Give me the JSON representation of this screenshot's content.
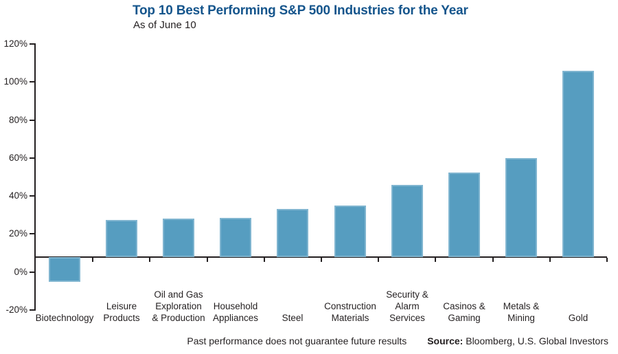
{
  "chart_data": {
    "type": "bar",
    "title": "Top 10 Best Performing S&P 500 Industries for the Year",
    "subtitle": "As of June 10",
    "unit": "percent",
    "categories": [
      "Biotechnology",
      "Leisure Products",
      "Oil and Gas Exploration & Production",
      "Household Appliances",
      "Steel",
      "Construction Materials",
      "Security & Alarm Services",
      "Casinos & Gaming",
      "Metals & Mining",
      "Gold"
    ],
    "category_label_lines": [
      [
        "Biotechnology"
      ],
      [
        "Leisure",
        "Products"
      ],
      [
        "Oil and Gas",
        "Exploration",
        "& Production"
      ],
      [
        "Household",
        "Appliances"
      ],
      [
        "Steel"
      ],
      [
        "Construction",
        "Materials"
      ],
      [
        "Security &",
        "Alarm",
        "Services"
      ],
      [
        "Casinos &",
        "Gaming"
      ],
      [
        "Metals &",
        "Mining"
      ],
      [
        "Gold"
      ]
    ],
    "values": [
      -5,
      27.5,
      28,
      28.5,
      33,
      35,
      46,
      52.5,
      60,
      106
    ],
    "ylim": [
      -20,
      120
    ],
    "y_ticks": [
      {
        "value": 120,
        "label": "120%"
      },
      {
        "value": 100,
        "label": "100%"
      },
      {
        "value": 80,
        "label": "80%"
      },
      {
        "value": 60,
        "label": "60%"
      },
      {
        "value": 40,
        "label": "40%"
      },
      {
        "value": 20,
        "label": "20%"
      },
      {
        "value": 0,
        "label": "0%"
      },
      {
        "value": -20,
        "label": "-20%"
      }
    ],
    "axis_crosses_at": 8,
    "grid": false,
    "legend": false
  },
  "footer": {
    "disclaimer": "Past performance does not guarantee future results",
    "source_label": "Source:",
    "source_text": "Bloomberg, U.S. Global Investors"
  },
  "colors": {
    "title_blue": "#15558c",
    "bar_blue": "#569dc0",
    "axis_ink": "#231f20",
    "text_ink": "#231f20",
    "background": "#ffffff"
  }
}
